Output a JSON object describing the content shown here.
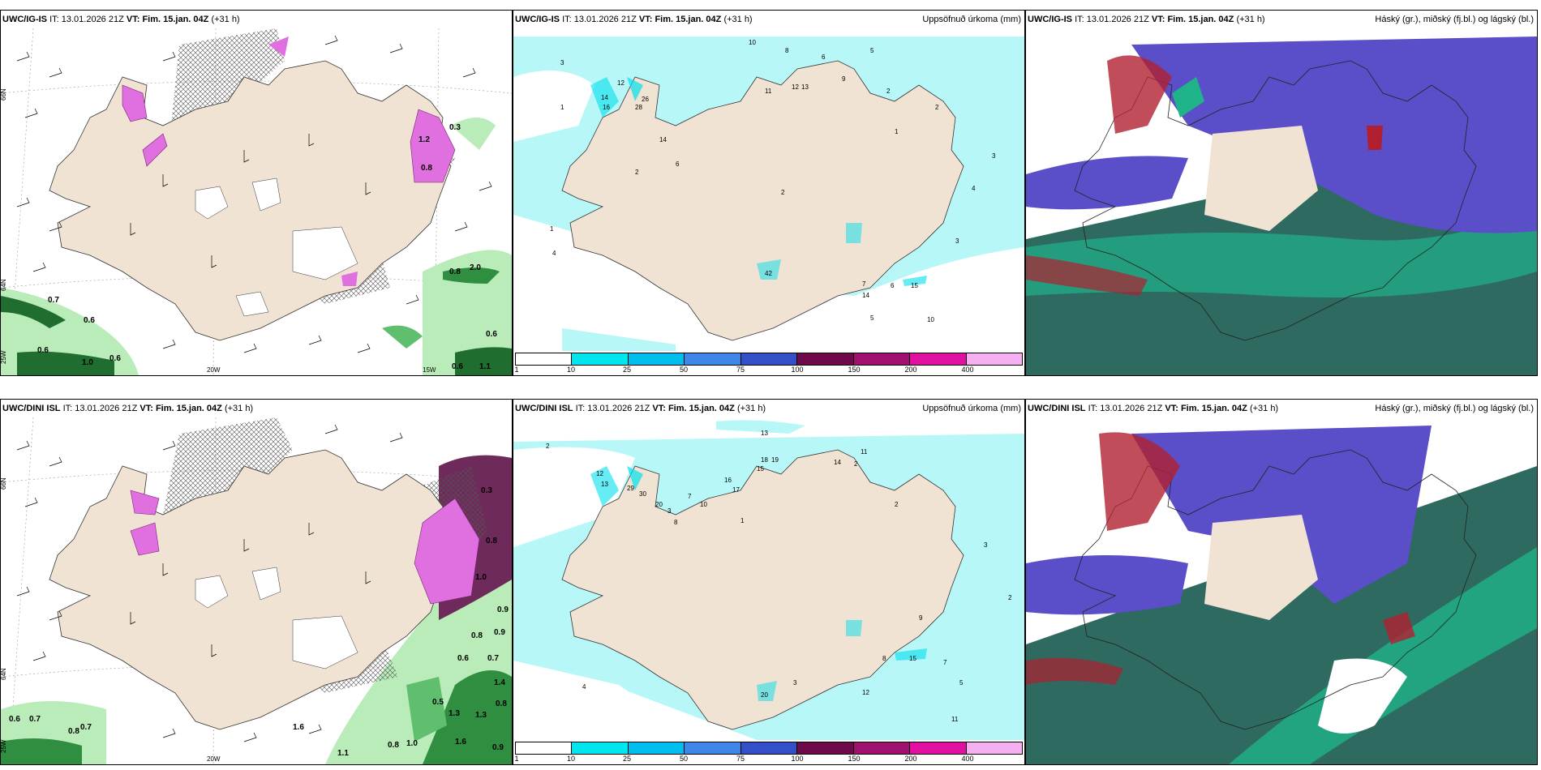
{
  "panels": [
    {
      "id": "p1",
      "model": "UWC/IG-IS",
      "it_label": "IT:",
      "it": "13.01.2026 21Z",
      "vt_label": "VT:",
      "vt": "Fim. 15.jan. 04Z",
      "lead": "(+31 h)",
      "right_title": "",
      "values": [
        "0.7",
        "0.6",
        "0.6",
        "1.0",
        "0.6",
        "0.6",
        "1.1",
        "0.6",
        "0.8",
        "2.0",
        "1.2",
        "0.8",
        "0.3"
      ],
      "axes": [
        "66N",
        "64N",
        "25W",
        "20W",
        "15W"
      ]
    },
    {
      "id": "p2",
      "model": "UWC/IG-IS",
      "it_label": "IT:",
      "it": "13.01.2026 21Z",
      "vt_label": "VT:",
      "vt": "Fim. 15.jan. 04Z",
      "lead": "(+31 h)",
      "right_title": "Uppsöfnuð úrkoma (mm)",
      "values": [
        "10",
        "8",
        "6",
        "5",
        "12",
        "14",
        "16",
        "28",
        "26",
        "14",
        "3",
        "1",
        "1",
        "2",
        "4",
        "6",
        "2",
        "12",
        "13",
        "9",
        "11",
        "2",
        "1",
        "2",
        "3",
        "4",
        "15",
        "3",
        "14",
        "7",
        "6",
        "5",
        "42",
        "10"
      ],
      "colorbar": {
        "ticks": [
          "1",
          "10",
          "25",
          "50",
          "75",
          "100",
          "150",
          "200",
          "400"
        ],
        "colors": [
          "#ffffff",
          "#00e5ee",
          "#00bfef",
          "#3e86e8",
          "#3450c8",
          "#6e0a4a",
          "#a0106e",
          "#e010a0",
          "#f4b0f0"
        ]
      }
    },
    {
      "id": "p3",
      "model": "UWC/IG-IS",
      "it_label": "IT:",
      "it": "13.01.2026 21Z",
      "vt_label": "VT:",
      "vt": "Fim. 15.jan. 04Z",
      "lead": "(+31 h)",
      "right_title": "Háský (gr.), miðský (fj.bl.) og lágský (bl.)"
    },
    {
      "id": "p4",
      "model": "UWC/DINI ISL",
      "it_label": "IT:",
      "it": "13.01.2026 21Z",
      "vt_label": "VT:",
      "vt": "Fim. 15.jan. 04Z",
      "lead": "(+31 h)",
      "right_title": "",
      "values": [
        "0.3",
        "0.8",
        "1.0",
        "0.9",
        "0.9",
        "0.8",
        "0.6",
        "0.7",
        "1.4",
        "0.8",
        "0.5",
        "1.3",
        "1.3",
        "1.6",
        "0.9",
        "1.0",
        "0.8",
        "1.1",
        "1.6",
        "0.7",
        "0.8",
        "0.6",
        "0.7"
      ],
      "axes": [
        "66N",
        "64N",
        "25W",
        "20W"
      ]
    },
    {
      "id": "p5",
      "model": "UWC/DINI ISL",
      "it_label": "IT:",
      "it": "13.01.2026 21Z",
      "vt_label": "VT:",
      "vt": "Fim. 15.jan. 04Z",
      "lead": "(+31 h)",
      "right_title": "Uppsöfnuð úrkoma (mm)",
      "values": [
        "13",
        "2",
        "12",
        "13",
        "29",
        "30",
        "20",
        "18",
        "19",
        "15",
        "16",
        "17",
        "14",
        "11",
        "10",
        "2",
        "3",
        "7",
        "8",
        "1",
        "2",
        "15",
        "9",
        "3",
        "2",
        "4",
        "20",
        "3",
        "12",
        "8",
        "7",
        "5",
        "11"
      ],
      "colorbar": {
        "ticks": [
          "1",
          "10",
          "25",
          "50",
          "75",
          "100",
          "150",
          "200",
          "400"
        ],
        "colors": [
          "#ffffff",
          "#00e5ee",
          "#00bfef",
          "#3e86e8",
          "#3450c8",
          "#6e0a4a",
          "#a0106e",
          "#e010a0",
          "#f4b0f0"
        ]
      }
    },
    {
      "id": "p6",
      "model": "UWC/DINI ISL",
      "it_label": "IT:",
      "it": "13.01.2026 21Z",
      "vt_label": "VT:",
      "vt": "Fim. 15.jan. 04Z",
      "lead": "(+31 h)",
      "right_title": "Háský (gr.), miðský (fj.bl.) og lágský (bl.)"
    }
  ],
  "colors": {
    "land": "#f1e3d3",
    "precip_light": "#b8f7f7",
    "precip_cyan": "#00e0ee",
    "green_light": "#b9ecb9",
    "green_mid": "#5fbf6f",
    "green_dark": "#1f6e2f",
    "magenta": "#e070e0",
    "cloud_high": "#5a4fc8",
    "cloud_mid": "#1fb38a",
    "cloud_low": "#2e6a60",
    "cloud_red": "#b02030"
  }
}
